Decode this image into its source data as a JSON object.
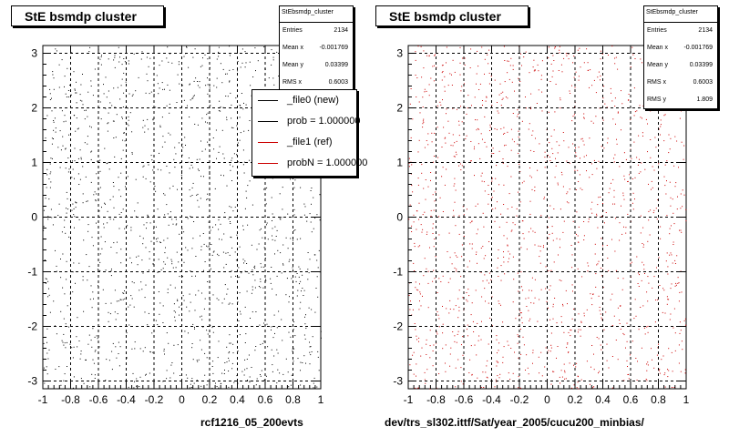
{
  "chart_data": [
    {
      "type": "scatter",
      "title": "StE bsmdp cluster",
      "xlabel": "rcf1216_05_200evts",
      "ylabel": "",
      "xlim": [
        -1,
        1
      ],
      "ylim": [
        -3.1416,
        3.1416
      ],
      "xticks": [
        "-1",
        "-0.8",
        "-0.6",
        "-0.4",
        "-0.2",
        "0",
        "0.2",
        "0.4",
        "0.6",
        "0.8",
        "1"
      ],
      "yticks": [
        "-3",
        "-2",
        "-1",
        "0",
        "1",
        "2",
        "3"
      ],
      "grid": true,
      "marker_color": "#000000",
      "stats": {
        "name": "StEbsmdp_cluster",
        "rows": [
          {
            "label": "Entries",
            "value": "2134"
          },
          {
            "label": "Mean x",
            "value": "-0.001769"
          },
          {
            "label": "Mean y",
            "value": "0.03399"
          },
          {
            "label": "RMS x",
            "value": "0.6003"
          }
        ]
      },
      "legend": {
        "placement": "top-right",
        "entries": [
          {
            "label": "_file0 (new)",
            "color": "#000000"
          },
          {
            "label": "prob = 1.000000",
            "color": "#000000"
          },
          {
            "label": "_file1 (ref)",
            "color": "#cc0000"
          },
          {
            "label": "probN = 1.000000",
            "color": "#cc0000"
          }
        ]
      }
    },
    {
      "type": "scatter",
      "title": "StE bsmdp cluster",
      "xlabel": "dev/trs_sl302.ittf/Sat/year_2005/cucu200_minbias/",
      "ylabel": "",
      "xlim": [
        -1,
        1
      ],
      "ylim": [
        -3.1416,
        3.1416
      ],
      "xticks": [
        "-1",
        "-0.8",
        "-0.6",
        "-0.4",
        "-0.2",
        "0",
        "0.2",
        "0.4",
        "0.6",
        "0.8",
        "1"
      ],
      "yticks": [
        "-3",
        "-2",
        "-1",
        "0",
        "1",
        "2",
        "3"
      ],
      "grid": true,
      "marker_color": "#cc0000",
      "stats": {
        "name": "StEbsmdp_cluster",
        "rows": [
          {
            "label": "Entries",
            "value": "2134"
          },
          {
            "label": "Mean x",
            "value": "-0.001769"
          },
          {
            "label": "Mean y",
            "value": "0.03399"
          },
          {
            "label": "RMS x",
            "value": "0.6003"
          },
          {
            "label": "RMS y",
            "value": "1.809"
          }
        ]
      }
    }
  ]
}
